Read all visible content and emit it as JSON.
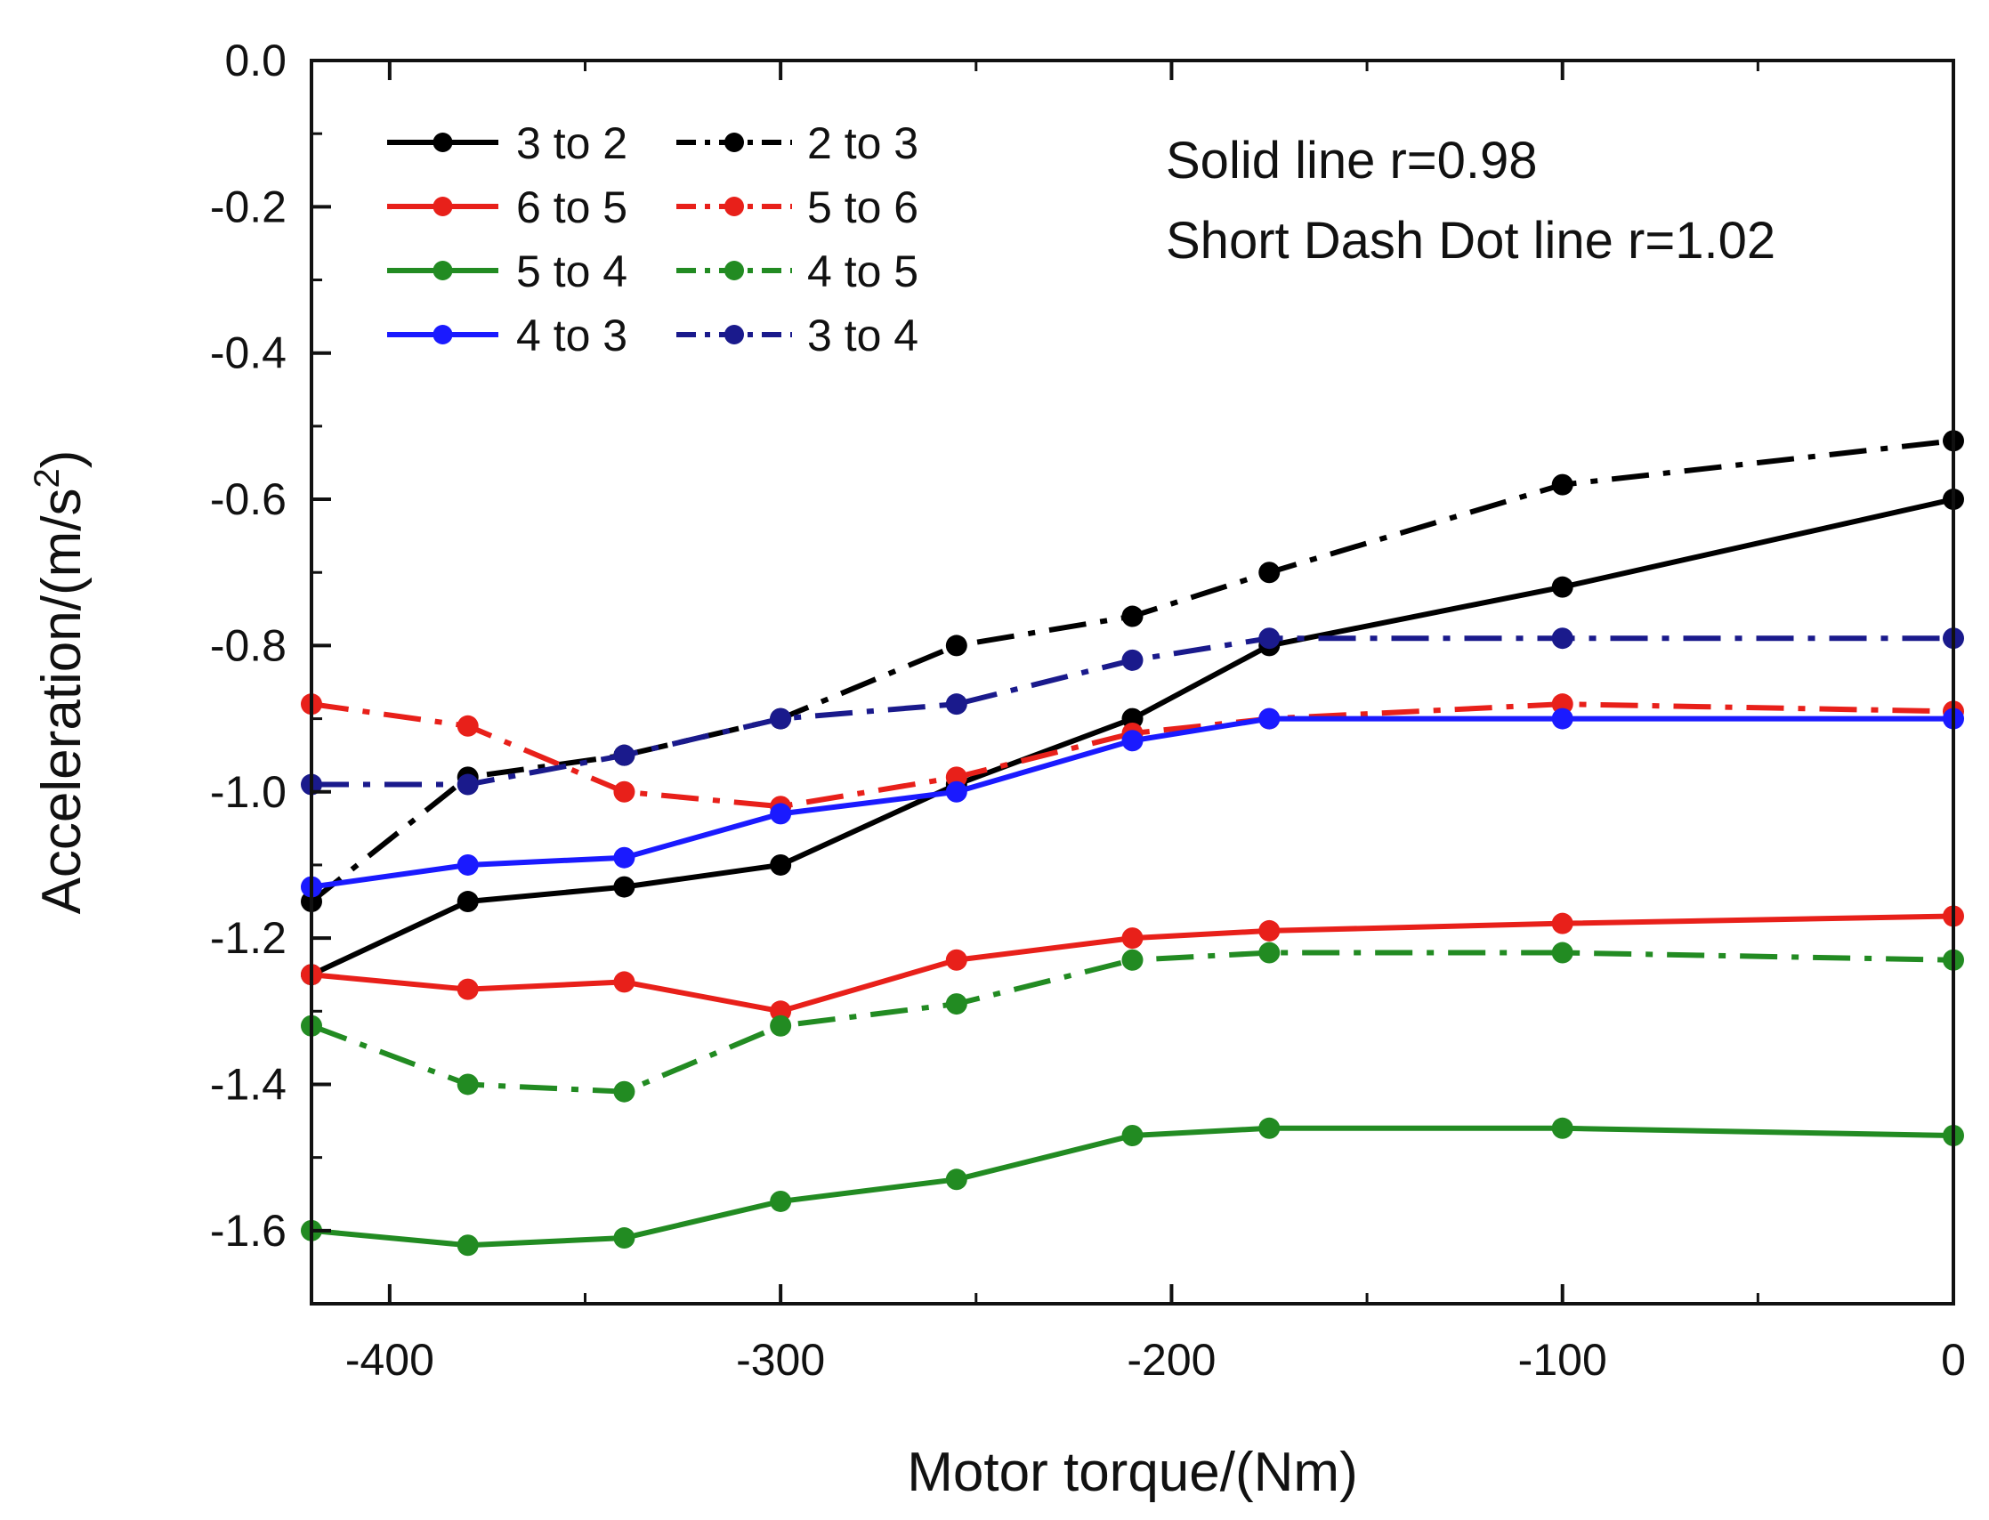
{
  "chart_data": {
    "type": "line",
    "title": "",
    "xlabel": "Motor torque/(Nm)",
    "ylabel_main": "Acceleration/(m/s",
    "ylabel_sup": "2",
    "ylabel_close": ")",
    "xlim": [
      -420,
      0
    ],
    "ylim": [
      -1.7,
      0.0
    ],
    "x_ticks": [
      -400,
      -300,
      -200,
      -100,
      0
    ],
    "x_tick_labels": [
      "-400",
      "-300",
      "-200",
      "-100",
      "0"
    ],
    "y_ticks": [
      0.0,
      -0.2,
      -0.4,
      -0.6,
      -0.8,
      -1.0,
      -1.2,
      -1.4,
      -1.6
    ],
    "y_tick_labels": [
      "0.0",
      "-0.2",
      "-0.4",
      "-0.6",
      "-0.8",
      "-1.0",
      "-1.2",
      "-1.4",
      "-1.6"
    ],
    "grid": false,
    "legend_position": "top-left",
    "annotations": [
      "Solid line r=0.98",
      "Short Dash Dot line r=1.02"
    ],
    "x": [
      -420,
      -380,
      -340,
      -300,
      -255,
      -210,
      -175,
      -100,
      0
    ],
    "series": [
      {
        "name": "3 to 2",
        "style": "solid",
        "color": "#000000",
        "values": [
          -1.25,
          -1.15,
          -1.13,
          -1.1,
          -0.99,
          -0.9,
          -0.8,
          -0.72,
          -0.6
        ]
      },
      {
        "name": "2 to 3",
        "style": "dashdot",
        "color": "#000000",
        "values": [
          -1.15,
          -0.98,
          -0.95,
          -0.9,
          -0.8,
          -0.76,
          -0.7,
          -0.58,
          -0.52
        ]
      },
      {
        "name": "6 to 5",
        "style": "solid",
        "color": "#e8201a",
        "values": [
          -1.25,
          -1.27,
          -1.26,
          -1.3,
          -1.23,
          -1.2,
          -1.19,
          -1.18,
          -1.17
        ]
      },
      {
        "name": "5 to 6",
        "style": "dashdot",
        "color": "#e8201a",
        "values": [
          -0.88,
          -0.91,
          -1.0,
          -1.02,
          -0.98,
          -0.92,
          -0.9,
          -0.88,
          -0.89
        ]
      },
      {
        "name": "5 to 4",
        "style": "solid",
        "color": "#228b22",
        "values": [
          -1.6,
          -1.62,
          -1.61,
          -1.56,
          -1.53,
          -1.47,
          -1.46,
          -1.46,
          -1.47
        ]
      },
      {
        "name": "4 to 5",
        "style": "dashdot",
        "color": "#228b22",
        "values": [
          -1.32,
          -1.4,
          -1.41,
          -1.32,
          -1.29,
          -1.23,
          -1.22,
          -1.22,
          -1.23
        ]
      },
      {
        "name": "4 to 3",
        "style": "solid",
        "color": "#1a1aff",
        "values": [
          -1.13,
          -1.1,
          -1.09,
          -1.03,
          -1.0,
          -0.93,
          -0.9,
          -0.9,
          -0.9
        ]
      },
      {
        "name": "3 to 4",
        "style": "dashdot",
        "color": "#1a1a8c",
        "values": [
          -0.99,
          -0.99,
          -0.95,
          -0.9,
          -0.88,
          -0.82,
          -0.79,
          -0.79,
          -0.79
        ]
      }
    ],
    "legend_order": [
      "3 to 2",
      "2 to 3",
      "6 to 5",
      "5 to 6",
      "5 to 4",
      "4 to 5",
      "4 to 3",
      "3 to 4"
    ]
  }
}
